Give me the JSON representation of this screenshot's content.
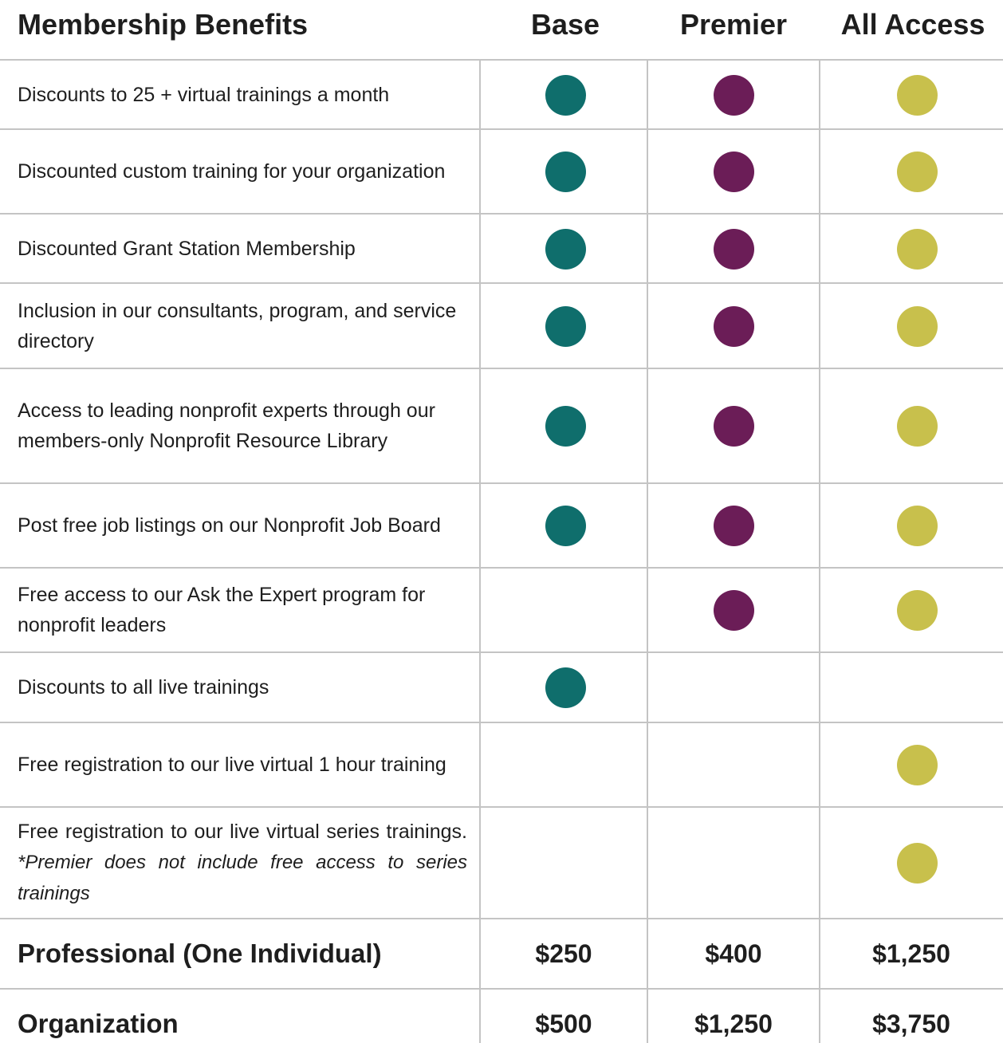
{
  "header": {
    "title": "Membership Benefits",
    "tiers": [
      "Base",
      "Premier",
      "All Access"
    ],
    "tier_colors": [
      "#0f6e6c",
      "#6b1d57",
      "#c8c04c"
    ]
  },
  "benefits": [
    {
      "text": "Discounts to 25 + virtual trainings a month",
      "included": [
        true,
        true,
        true
      ]
    },
    {
      "text": "Discounted custom training for your organization",
      "included": [
        true,
        true,
        true
      ]
    },
    {
      "text": "Discounted Grant Station Membership",
      "included": [
        true,
        true,
        true
      ]
    },
    {
      "text": "Inclusion in our consultants, program, and service directory",
      "included": [
        true,
        true,
        true
      ]
    },
    {
      "text": "Access to leading nonprofit experts through our members-only Nonprofit Resource Library",
      "included": [
        true,
        true,
        true
      ]
    },
    {
      "text": "Post free job listings on our Nonprofit Job Board",
      "included": [
        true,
        true,
        true
      ]
    },
    {
      "text": "Free access to our Ask the Expert program for nonprofit leaders",
      "included": [
        false,
        true,
        true
      ]
    },
    {
      "text": "Discounts to all live trainings",
      "included": [
        true,
        false,
        false
      ]
    },
    {
      "text": "Free registration to our live virtual 1 hour training",
      "included": [
        false,
        false,
        true
      ]
    },
    {
      "text": "Free registration to our live virtual series trainings.",
      "note": "*Premier does not include free access to series trainings",
      "included": [
        false,
        false,
        true
      ]
    }
  ],
  "pricing": [
    {
      "label": "Professional (One Individual)",
      "prices": [
        "$250",
        "$400",
        "$1,250"
      ]
    },
    {
      "label": "Organization",
      "prices": [
        "$500",
        "$1,250",
        "$3,750"
      ]
    }
  ]
}
